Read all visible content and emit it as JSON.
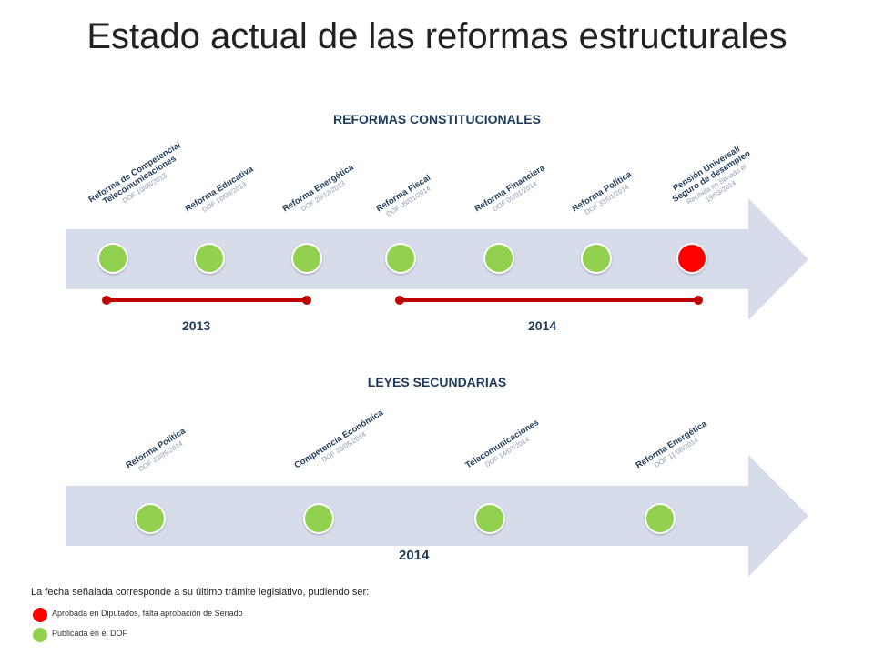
{
  "title": "Estado actual de las reformas estructurales",
  "colors": {
    "published": "#92d050",
    "approved": "#ff0000",
    "arrow": "#d6dcea",
    "timeline": "#c00000"
  },
  "constitutional": {
    "heading": "REFORMAS CONSTITUCIONALES",
    "items": [
      {
        "name_lines": [
          "Reforma de Competencia/",
          "Telecomunicaciones"
        ],
        "date_lines": [
          "DOF 10/06/2013"
        ],
        "status": "published"
      },
      {
        "name_lines": [
          "Reforma Educativa"
        ],
        "date_lines": [
          "DOF 10/09/2013"
        ],
        "status": "published"
      },
      {
        "name_lines": [
          "Reforma Energética"
        ],
        "date_lines": [
          "DOF 20/12/2013"
        ],
        "status": "published"
      },
      {
        "name_lines": [
          "Reforma Fiscal"
        ],
        "date_lines": [
          "DOF 09/01/2014"
        ],
        "status": "published"
      },
      {
        "name_lines": [
          "Reforma Financiera"
        ],
        "date_lines": [
          "DOF 09/01/2014"
        ],
        "status": "published"
      },
      {
        "name_lines": [
          "Reforma Política"
        ],
        "date_lines": [
          "DOF 31/01/2014"
        ],
        "status": "published"
      },
      {
        "name_lines": [
          "Pensión Universal/",
          "Seguro de desempleo"
        ],
        "date_lines": [
          "Recibida en Senado el",
          "19/03/2014"
        ],
        "status": "approved"
      }
    ],
    "years": [
      "2013",
      "2014"
    ]
  },
  "secondary": {
    "heading": "LEYES SECUNDARIAS",
    "items": [
      {
        "name_lines": [
          "Reforma Política"
        ],
        "date_lines": [
          "DOF 23/05/2014"
        ],
        "status": "published"
      },
      {
        "name_lines": [
          "Competencia Económica"
        ],
        "date_lines": [
          "DOF 23/05/2014"
        ],
        "status": "published"
      },
      {
        "name_lines": [
          "Telecomunicaciones"
        ],
        "date_lines": [
          "DOF 14/07/2014"
        ],
        "status": "published"
      },
      {
        "name_lines": [
          "Reforma Energética"
        ],
        "date_lines": [
          "DOF 11/08/2014"
        ],
        "status": "published"
      }
    ],
    "year": "2014"
  },
  "footnote": "La fecha señalada corresponde a su último trámite legislativo, pudiendo ser:",
  "legend": [
    {
      "label": "Aprobada en Diputados, falta aprobación de Senado",
      "status": "approved"
    },
    {
      "label": "Publicada en el DOF",
      "status": "published"
    }
  ]
}
